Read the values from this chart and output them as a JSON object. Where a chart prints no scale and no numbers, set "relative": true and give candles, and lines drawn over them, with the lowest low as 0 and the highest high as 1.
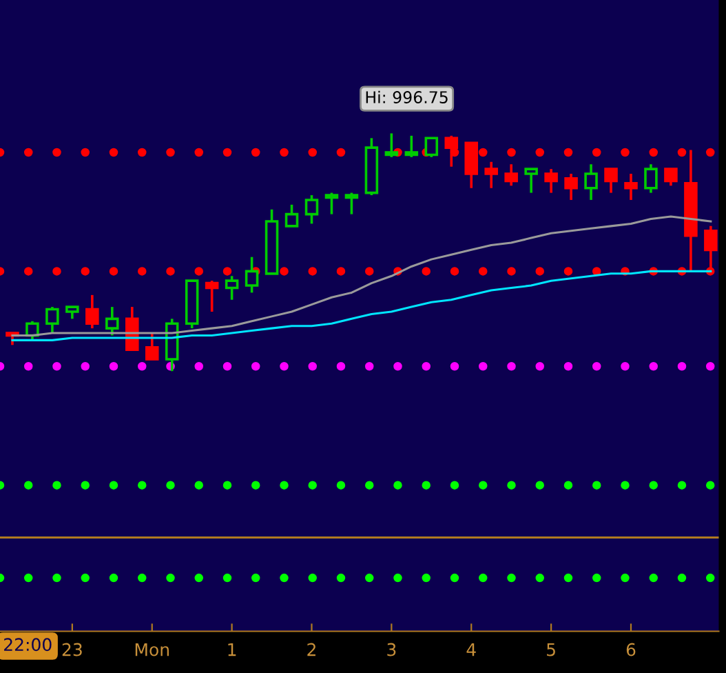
{
  "chart_data": {
    "type": "candlestick",
    "relative": true,
    "categories": [
      null,
      null,
      null,
      "23",
      null,
      null,
      null,
      "Mon",
      null,
      null,
      null,
      "1",
      null,
      null,
      null,
      "2",
      null,
      null,
      null,
      "3",
      null,
      null,
      null,
      "4",
      null,
      null,
      null,
      "5",
      null,
      null,
      null,
      "6",
      null,
      null,
      null,
      null
    ],
    "ohlc": [
      [
        0.16,
        0.16,
        0.11,
        0.15
      ],
      [
        0.15,
        0.21,
        0.13,
        0.2
      ],
      [
        0.2,
        0.27,
        0.16,
        0.26
      ],
      [
        0.25,
        0.27,
        0.22,
        0.27
      ],
      [
        0.26,
        0.32,
        0.18,
        0.2
      ],
      [
        0.18,
        0.27,
        0.15,
        0.22
      ],
      [
        0.22,
        0.27,
        0.09,
        0.09
      ],
      [
        0.1,
        0.16,
        0.05,
        0.05
      ],
      [
        0.05,
        0.22,
        0.0,
        0.2
      ],
      [
        0.2,
        0.38,
        0.18,
        0.38
      ],
      [
        0.37,
        0.38,
        0.25,
        0.35
      ],
      [
        0.35,
        0.4,
        0.3,
        0.38
      ],
      [
        0.36,
        0.48,
        0.33,
        0.42
      ],
      [
        0.41,
        0.68,
        0.41,
        0.63
      ],
      [
        0.61,
        0.7,
        0.61,
        0.66
      ],
      [
        0.66,
        0.74,
        0.62,
        0.72
      ],
      [
        0.73,
        0.75,
        0.66,
        0.74
      ],
      [
        0.73,
        0.75,
        0.66,
        0.74
      ],
      [
        0.75,
        0.98,
        0.74,
        0.94
      ],
      [
        0.91,
        1.0,
        0.9,
        0.92
      ],
      [
        0.91,
        0.99,
        0.9,
        0.92
      ],
      [
        0.91,
        0.98,
        0.9,
        0.98
      ],
      [
        0.98,
        0.99,
        0.86,
        0.94
      ],
      [
        0.96,
        0.96,
        0.77,
        0.83
      ],
      [
        0.85,
        0.88,
        0.77,
        0.83
      ],
      [
        0.83,
        0.87,
        0.78,
        0.8
      ],
      [
        0.83,
        0.85,
        0.75,
        0.85
      ],
      [
        0.83,
        0.85,
        0.75,
        0.8
      ],
      [
        0.81,
        0.83,
        0.72,
        0.77
      ],
      [
        0.77,
        0.87,
        0.72,
        0.83
      ],
      [
        0.85,
        0.85,
        0.75,
        0.8
      ],
      [
        0.79,
        0.83,
        0.72,
        0.77
      ],
      [
        0.77,
        0.87,
        0.75,
        0.85
      ],
      [
        0.85,
        0.85,
        0.78,
        0.8
      ],
      [
        0.79,
        0.93,
        0.42,
        0.57
      ],
      [
        0.59,
        0.61,
        0.42,
        0.51
      ]
    ],
    "colors": [
      "#ff0000",
      "#00cc00",
      "#00cc00",
      "#00cc00",
      "#ff0000",
      "#00cc00",
      "#ff0000",
      "#ff0000",
      "#00cc00",
      "#00cc00",
      "#ff0000",
      "#00cc00",
      "#00cc00",
      "#00cc00",
      "#00cc00",
      "#00cc00",
      "#00cc00",
      "#00cc00",
      "#00cc00",
      "#00cc00",
      "#00cc00",
      "#00cc00",
      "#ff0000",
      "#ff0000",
      "#ff0000",
      "#ff0000",
      "#00cc00",
      "#ff0000",
      "#ff0000",
      "#00cc00",
      "#ff0000",
      "#ff0000",
      "#00cc00",
      "#ff0000",
      "#ff0000",
      "#ff0000"
    ],
    "series": [
      {
        "type": "line",
        "color": "#9a9a9a",
        "values": [
          0.15,
          0.15,
          0.16,
          0.16,
          0.16,
          0.16,
          0.16,
          0.16,
          0.16,
          0.17,
          0.18,
          0.19,
          0.21,
          0.23,
          0.25,
          0.28,
          0.31,
          0.33,
          0.37,
          0.4,
          0.44,
          0.47,
          0.49,
          0.51,
          0.53,
          0.54,
          0.56,
          0.58,
          0.59,
          0.6,
          0.61,
          0.62,
          0.64,
          0.65,
          0.64,
          0.63
        ]
      },
      {
        "type": "line",
        "color": "#00e5ff",
        "values": [
          0.13,
          0.13,
          0.13,
          0.14,
          0.14,
          0.14,
          0.14,
          0.14,
          0.14,
          0.15,
          0.15,
          0.16,
          0.17,
          0.18,
          0.19,
          0.19,
          0.2,
          0.22,
          0.24,
          0.25,
          0.27,
          0.29,
          0.3,
          0.32,
          0.34,
          0.35,
          0.36,
          0.38,
          0.39,
          0.4,
          0.41,
          0.41,
          0.42,
          0.42,
          0.42,
          0.42
        ]
      }
    ],
    "ref_lines": [
      {
        "axis": "y",
        "value": 0.92,
        "color": "#ff0000",
        "line_style": "dotted"
      },
      {
        "axis": "y",
        "value": 0.42,
        "color": "#ff0000",
        "line_style": "dotted"
      },
      {
        "axis": "y",
        "value": 0.02,
        "color": "#ff00ff",
        "line_style": "dotted"
      },
      {
        "axis": "y",
        "value": -0.48,
        "color": "#00ff00",
        "line_style": "dotted"
      },
      {
        "axis": "y",
        "value": -0.7,
        "color": "#b07a20",
        "line_style": "solid"
      },
      {
        "axis": "y",
        "value": -0.87,
        "color": "#00ff00",
        "line_style": "dotted"
      }
    ],
    "annotations": [
      "Hi: 996.75",
      "22:00"
    ],
    "grid": false
  }
}
